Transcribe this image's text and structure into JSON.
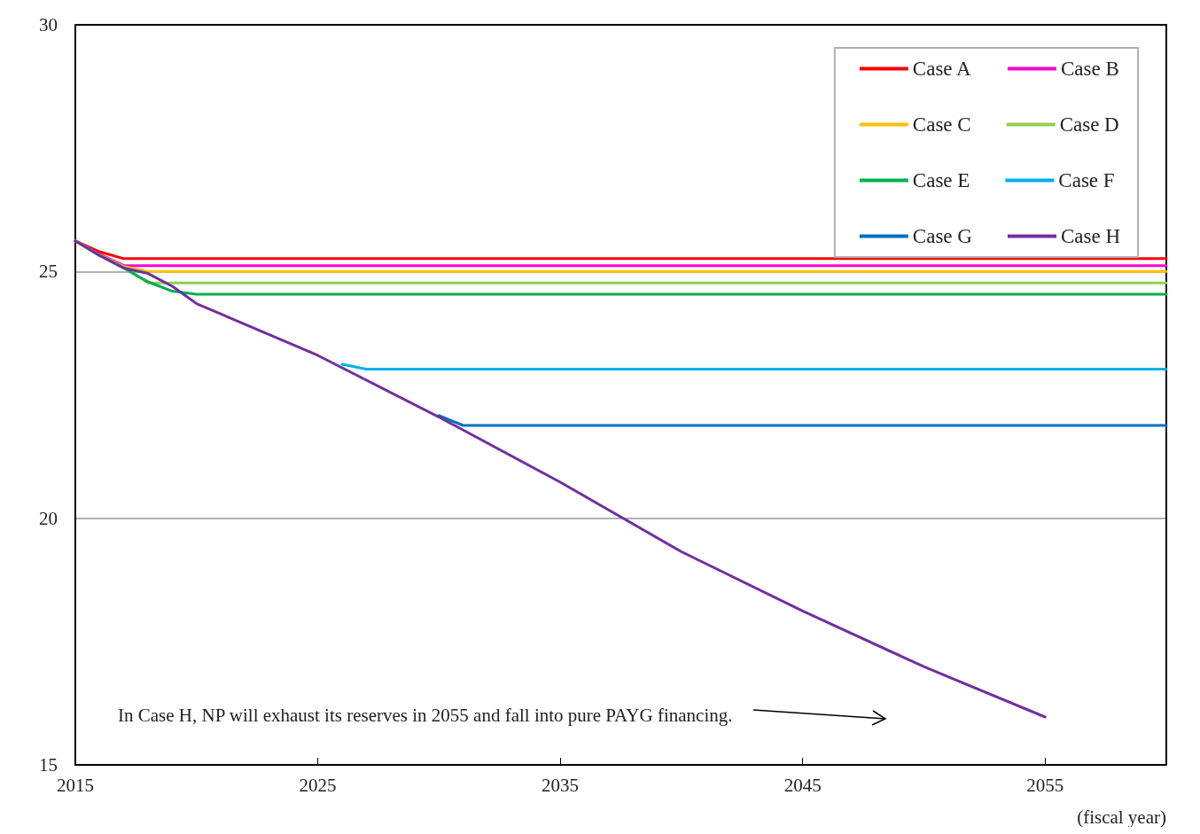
{
  "chart_data": {
    "type": "line",
    "xlabel": "(fiscal year)",
    "xlim": [
      2015,
      2060
    ],
    "xticks": [
      2015,
      2025,
      2035,
      2045,
      2055
    ],
    "ylim": [
      15,
      30
    ],
    "yticks": [
      15,
      20,
      25,
      30
    ],
    "grid": "y",
    "legend": "top right",
    "marker": "none",
    "line_style": "solid",
    "series": [
      {
        "name": "Case A",
        "color": "#ff0000",
        "x": [
          2015,
          2016,
          2017,
          2060
        ],
        "values": [
          25.62,
          25.4,
          25.26,
          25.26
        ]
      },
      {
        "name": "Case B",
        "color": "#ff00cc",
        "x": [
          2015,
          2016,
          2017,
          2060
        ],
        "values": [
          25.62,
          25.35,
          25.12,
          25.12
        ]
      },
      {
        "name": "Case C",
        "color": "#ffc000",
        "x": [
          2015,
          2016,
          2017,
          2018,
          2060
        ],
        "values": [
          25.62,
          25.33,
          25.1,
          25.0,
          25.0
        ]
      },
      {
        "name": "Case D",
        "color": "#92d050",
        "x": [
          2015,
          2016,
          2017,
          2018,
          2060
        ],
        "values": [
          25.62,
          25.33,
          25.08,
          24.77,
          24.77
        ]
      },
      {
        "name": "Case E",
        "color": "#00b050",
        "x": [
          2015,
          2016,
          2017,
          2018,
          2019,
          2020,
          2060
        ],
        "values": [
          25.62,
          25.33,
          25.07,
          24.79,
          24.6,
          24.54,
          24.54
        ]
      },
      {
        "name": "Case F",
        "color": "#00b0f0",
        "x": [
          2026,
          2027,
          2060
        ],
        "values": [
          23.12,
          23.02,
          23.02
        ]
      },
      {
        "name": "Case G",
        "color": "#0070c0",
        "x": [
          2030,
          2031,
          2060
        ],
        "values": [
          22.08,
          21.88,
          21.88
        ]
      },
      {
        "name": "Case H",
        "color": "#7030a0",
        "x": [
          2015,
          2016,
          2017,
          2018,
          2019,
          2020,
          2025,
          2030,
          2035,
          2040,
          2045,
          2050,
          2055
        ],
        "values": [
          25.62,
          25.32,
          25.07,
          24.96,
          24.7,
          24.35,
          23.3,
          22.05,
          20.73,
          19.32,
          18.12,
          16.99,
          15.97
        ]
      }
    ],
    "annotations": [
      "In Case H, NP will exhaust its reserves in 2055 and fall into pure PAYG financing."
    ]
  }
}
